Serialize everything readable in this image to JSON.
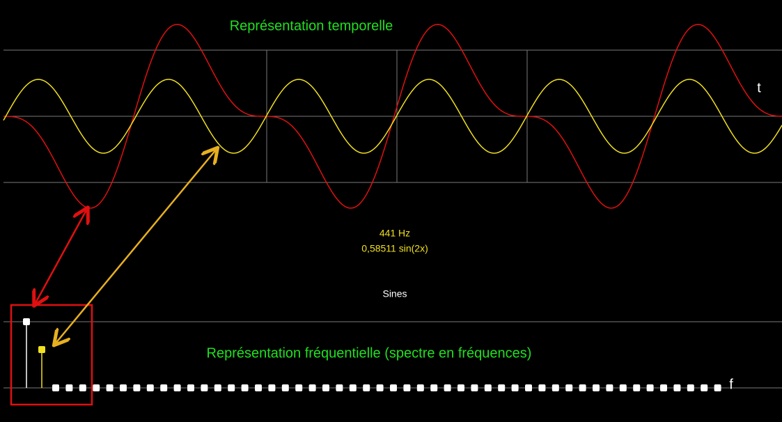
{
  "time_panel": {
    "title": "Représentation temporelle",
    "axis_label": "t"
  },
  "info": {
    "frequency": "441 Hz",
    "formula": "0,58511 sin(2x)",
    "mode": "Sines"
  },
  "frequency_panel": {
    "title": "Représentation fréquentielle (spectre en fréquences)",
    "axis_label": "f"
  }
}
